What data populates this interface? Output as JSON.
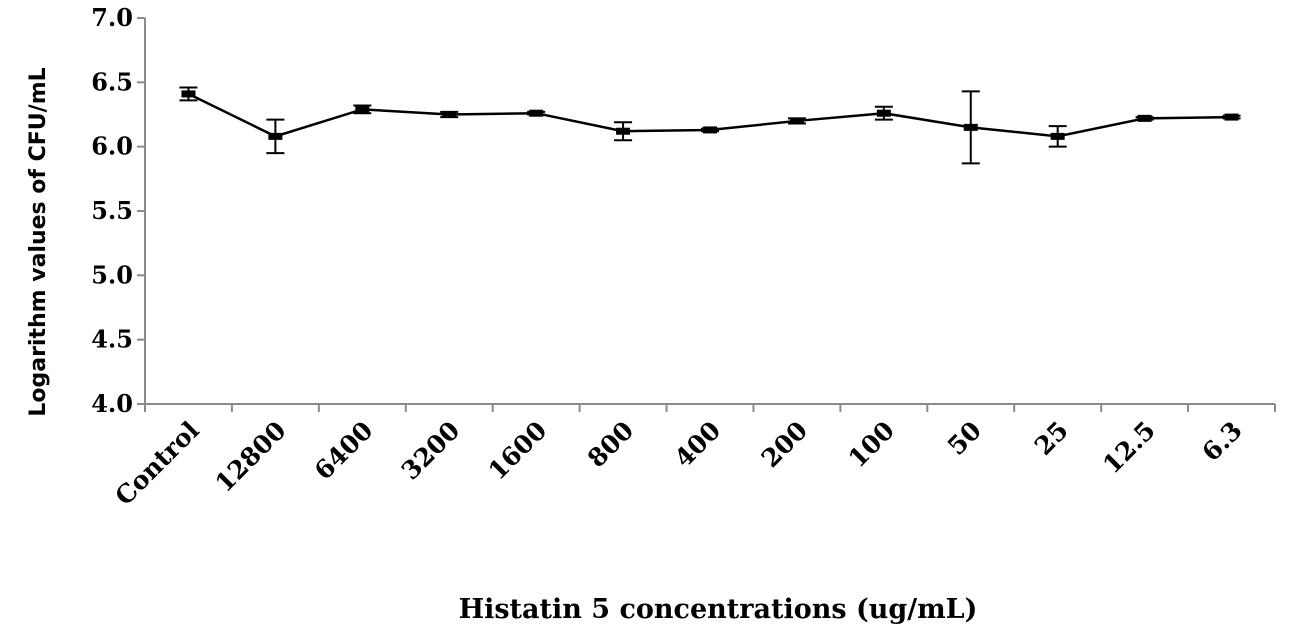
{
  "chart_data": {
    "type": "line",
    "title": "",
    "xlabel": "Histatin 5 concentrations (ug/mL)",
    "ylabel": "Logarithm values of CFU/mL",
    "ylim": [
      4.0,
      7.0
    ],
    "yticks": [
      "4.0",
      "4.5",
      "5.0",
      "5.5",
      "6.0",
      "6.5",
      "7.0"
    ],
    "grid": false,
    "legend": "none",
    "line_color": "#000000",
    "categories": [
      "Control",
      "12800",
      "6400",
      "3200",
      "1600",
      "800",
      "400",
      "200",
      "100",
      "50",
      "25",
      "12.5",
      "6.3"
    ],
    "series": [
      {
        "values": [
          6.41,
          6.08,
          6.29,
          6.25,
          6.26,
          6.12,
          6.13,
          6.2,
          6.26,
          6.15,
          6.08,
          6.22,
          6.23
        ],
        "error": [
          0.05,
          0.13,
          0.03,
          0.02,
          0.01,
          0.07,
          0.01,
          0.02,
          0.05,
          0.28,
          0.08,
          0.01,
          0.01
        ]
      }
    ]
  }
}
